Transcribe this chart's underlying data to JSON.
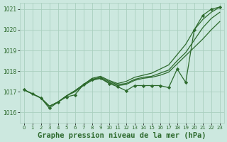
{
  "background_color": "#cce8df",
  "grid_color": "#aacfbf",
  "line_color": "#2d6a2d",
  "marker_color": "#2d6a2d",
  "xlabel": "Graphe pression niveau de la mer (hPa)",
  "xlabel_fontsize": 7.5,
  "xlim": [
    -0.5,
    23.5
  ],
  "ylim": [
    1015.5,
    1021.3
  ],
  "yticks": [
    1016,
    1017,
    1018,
    1019,
    1020,
    1021
  ],
  "xticks": [
    0,
    1,
    2,
    3,
    4,
    5,
    6,
    7,
    8,
    9,
    10,
    11,
    12,
    13,
    14,
    15,
    16,
    17,
    18,
    19,
    20,
    21,
    22,
    23
  ],
  "series": [
    {
      "x": [
        0,
        1,
        2,
        3,
        4,
        5,
        6,
        7,
        8,
        9,
        10,
        11,
        12,
        13,
        14,
        15,
        16,
        17,
        18,
        19,
        20,
        21,
        22,
        23
      ],
      "y": [
        1017.1,
        1016.9,
        1016.7,
        1016.3,
        1016.5,
        1016.8,
        1017.05,
        1017.35,
        1017.65,
        1017.75,
        1017.55,
        1017.4,
        1017.5,
        1017.7,
        1017.8,
        1017.9,
        1018.1,
        1018.3,
        1018.8,
        1019.3,
        1020.0,
        1020.5,
        1020.85,
        1021.1
      ],
      "with_markers": false
    },
    {
      "x": [
        0,
        1,
        2,
        3,
        4,
        5,
        6,
        7,
        8,
        9,
        10,
        11,
        12,
        13,
        14,
        15,
        16,
        17,
        18,
        19,
        20,
        21,
        22,
        23
      ],
      "y": [
        1017.1,
        1016.9,
        1016.7,
        1016.3,
        1016.5,
        1016.8,
        1017.05,
        1017.35,
        1017.6,
        1017.7,
        1017.5,
        1017.35,
        1017.4,
        1017.6,
        1017.7,
        1017.75,
        1017.9,
        1018.05,
        1018.5,
        1018.9,
        1019.5,
        1020.1,
        1020.55,
        1020.85
      ],
      "with_markers": false
    },
    {
      "x": [
        0,
        1,
        2,
        3,
        4,
        5,
        6,
        7,
        8,
        9,
        10,
        11,
        12,
        13,
        14,
        15,
        16,
        17,
        18,
        19,
        20,
        21,
        22,
        23
      ],
      "y": [
        1017.1,
        1016.9,
        1016.7,
        1016.3,
        1016.5,
        1016.8,
        1017.0,
        1017.3,
        1017.55,
        1017.65,
        1017.45,
        1017.3,
        1017.35,
        1017.55,
        1017.65,
        1017.7,
        1017.8,
        1017.95,
        1018.35,
        1018.75,
        1019.15,
        1019.55,
        1020.0,
        1020.4
      ],
      "with_markers": false
    },
    {
      "x": [
        0,
        1,
        2,
        3,
        4,
        5,
        6,
        7,
        8,
        9,
        10,
        11,
        12,
        13,
        14,
        15,
        16,
        17,
        18,
        19,
        20,
        21,
        22,
        23
      ],
      "y": [
        1017.1,
        1016.9,
        1016.7,
        1016.2,
        1016.5,
        1016.75,
        1016.85,
        1017.35,
        1017.6,
        1017.65,
        1017.4,
        1017.25,
        1017.05,
        1017.3,
        1017.3,
        1017.3,
        1017.3,
        1017.2,
        1018.1,
        1017.45,
        1020.0,
        1020.7,
        1021.0,
        1021.1
      ],
      "with_markers": true
    }
  ]
}
